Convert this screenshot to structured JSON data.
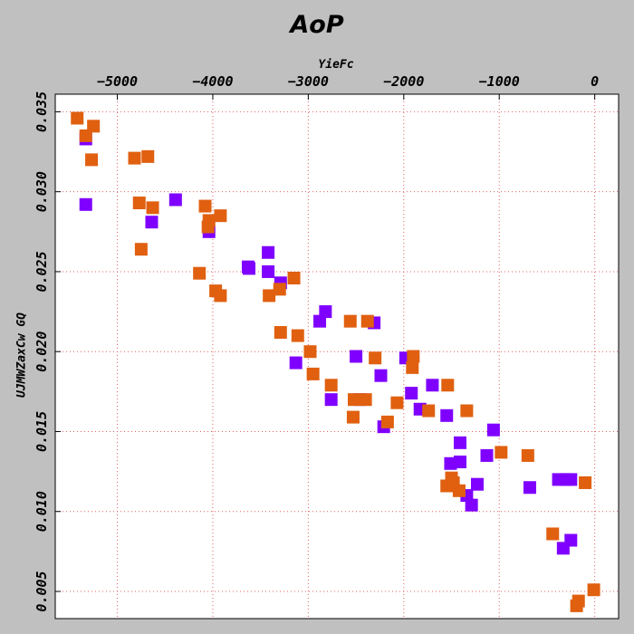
{
  "chart_data": {
    "type": "scatter",
    "title": "AoP",
    "xlabel": "YieFc",
    "ylabel": "UJMWZaxCw GQ",
    "x_axis_position": "top",
    "xlim": [
      -5650,
      250
    ],
    "ylim": [
      0.0033,
      0.0361
    ],
    "x_ticks": [
      -5000,
      -4000,
      -3000,
      -2000,
      -1000,
      0
    ],
    "x_tick_labels": [
      "−5000",
      "−4000",
      "−3000",
      "−2000",
      "−1000",
      "0"
    ],
    "y_ticks": [
      0.005,
      0.01,
      0.015,
      0.02,
      0.025,
      0.03,
      0.035
    ],
    "y_tick_labels": [
      "0.005",
      "0.010",
      "0.015",
      "0.020",
      "0.025",
      "0.030",
      "0.035"
    ],
    "grid": true,
    "colors": {
      "background": "#c0c0c0",
      "plot_background": "#ffffff",
      "grid": "#e06060"
    },
    "series": [
      {
        "color": "#7f00ff",
        "points": [
          [
            -5330,
            0.0333
          ],
          [
            -5330,
            0.0292
          ],
          [
            -4640,
            0.0281
          ],
          [
            -4390,
            0.0295
          ],
          [
            -4040,
            0.0275
          ],
          [
            -3630,
            0.0253
          ],
          [
            -3620,
            0.0252
          ],
          [
            -3420,
            0.0262
          ],
          [
            -3420,
            0.025
          ],
          [
            -3290,
            0.0243
          ],
          [
            -3130,
            0.0193
          ],
          [
            -2880,
            0.0219
          ],
          [
            -2820,
            0.0225
          ],
          [
            -2760,
            0.017
          ],
          [
            -2500,
            0.0197
          ],
          [
            -2460,
            0.017
          ],
          [
            -2310,
            0.0218
          ],
          [
            -2240,
            0.0185
          ],
          [
            -2210,
            0.0153
          ],
          [
            -1980,
            0.0196
          ],
          [
            -1920,
            0.0174
          ],
          [
            -1830,
            0.0164
          ],
          [
            -1700,
            0.0179
          ],
          [
            -1550,
            0.016
          ],
          [
            -1510,
            0.013
          ],
          [
            -1410,
            0.0131
          ],
          [
            -1410,
            0.0143
          ],
          [
            -1340,
            0.011
          ],
          [
            -1290,
            0.0104
          ],
          [
            -1230,
            0.0117
          ],
          [
            -1130,
            0.0135
          ],
          [
            -1060,
            0.0151
          ],
          [
            -680,
            0.0115
          ],
          [
            -380,
            0.012
          ],
          [
            -330,
            0.0077
          ],
          [
            -300,
            0.012
          ],
          [
            -250,
            0.012
          ],
          [
            -250,
            0.0082
          ]
        ]
      },
      {
        "color": "#e06010",
        "points": [
          [
            -5420,
            0.0346
          ],
          [
            -5330,
            0.0335
          ],
          [
            -5250,
            0.0341
          ],
          [
            -5270,
            0.032
          ],
          [
            -4820,
            0.0321
          ],
          [
            -4770,
            0.0293
          ],
          [
            -4750,
            0.0264
          ],
          [
            -4680,
            0.0322
          ],
          [
            -4630,
            0.029
          ],
          [
            -4140,
            0.0249
          ],
          [
            -4080,
            0.0291
          ],
          [
            -4050,
            0.0278
          ],
          [
            -4040,
            0.0282
          ],
          [
            -3970,
            0.0238
          ],
          [
            -3920,
            0.0235
          ],
          [
            -3920,
            0.0285
          ],
          [
            -3410,
            0.0235
          ],
          [
            -3300,
            0.0239
          ],
          [
            -3290,
            0.0212
          ],
          [
            -3150,
            0.0246
          ],
          [
            -3110,
            0.021
          ],
          [
            -2980,
            0.02
          ],
          [
            -2950,
            0.0186
          ],
          [
            -2760,
            0.0179
          ],
          [
            -2560,
            0.0219
          ],
          [
            -2530,
            0.0159
          ],
          [
            -2520,
            0.017
          ],
          [
            -2400,
            0.017
          ],
          [
            -2380,
            0.0219
          ],
          [
            -2300,
            0.0196
          ],
          [
            -2170,
            0.0156
          ],
          [
            -2070,
            0.0168
          ],
          [
            -1910,
            0.019
          ],
          [
            -1900,
            0.0197
          ],
          [
            -1740,
            0.0163
          ],
          [
            -1540,
            0.0179
          ],
          [
            -1550,
            0.0116
          ],
          [
            -1500,
            0.0121
          ],
          [
            -1480,
            0.0118
          ],
          [
            -1420,
            0.0113
          ],
          [
            -1340,
            0.0163
          ],
          [
            -980,
            0.0137
          ],
          [
            -700,
            0.0135
          ],
          [
            -440,
            0.0086
          ],
          [
            -190,
            0.0041
          ],
          [
            -170,
            0.0044
          ],
          [
            -100,
            0.0118
          ],
          [
            -10,
            0.0051
          ]
        ]
      }
    ]
  }
}
